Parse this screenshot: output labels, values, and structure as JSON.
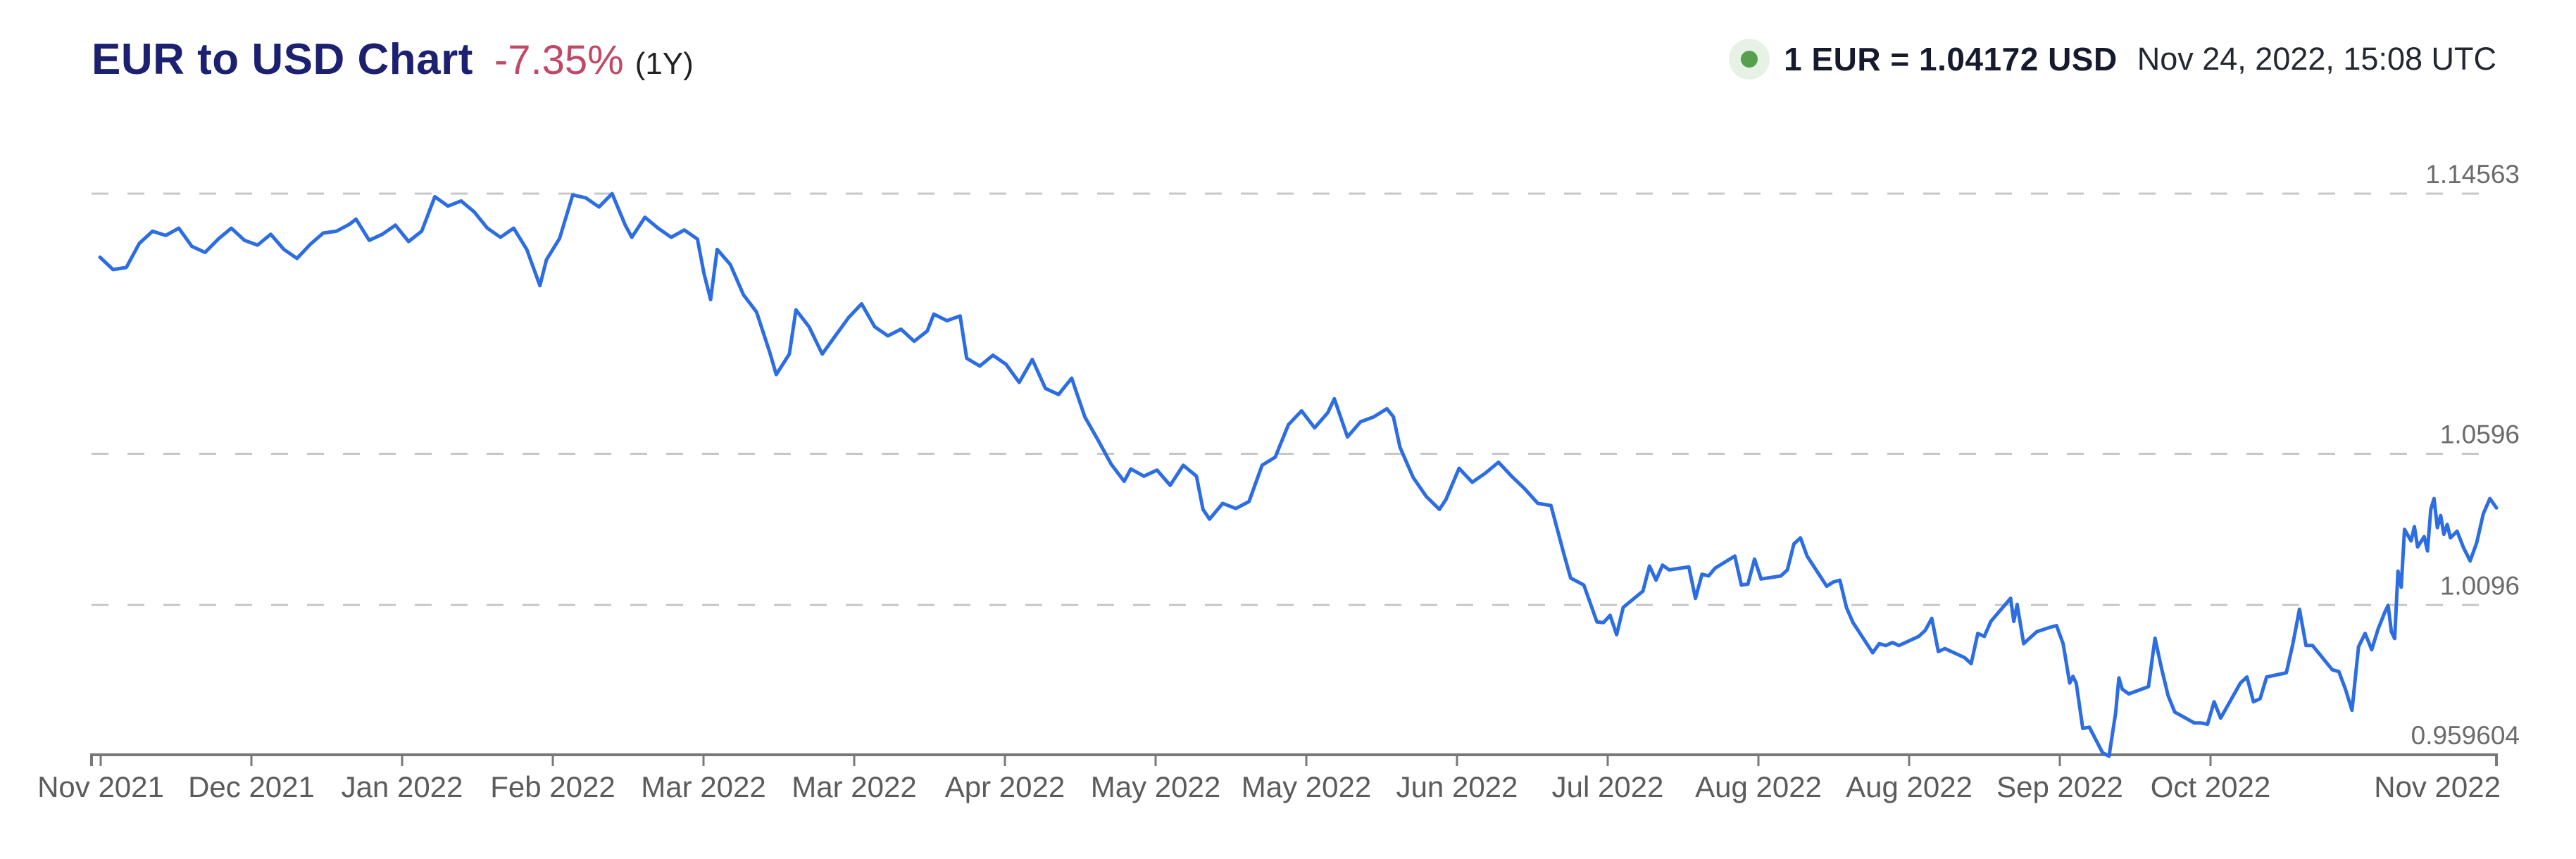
{
  "header": {
    "title": "EUR to USD Chart",
    "change_percent": "-7.35%",
    "range_label": "(1Y)",
    "rate_label": "1 EUR = 1.04172 USD",
    "timestamp": "Nov 24, 2022, 15:08 UTC"
  },
  "colors": {
    "title_navy": "#1c2070",
    "change_red": "#bf4967",
    "text_dark": "#151a2d",
    "accent_blue": "#2c6de2",
    "axis_gray": "#787878",
    "grid_gray": "#c7c7c7",
    "label_gray": "#6b6b6b",
    "xlabel_gray": "#5b5b5b",
    "live_green": "#55a14e",
    "live_halo": "#e7f1e5"
  },
  "chart_data": {
    "type": "line",
    "title": "EUR to USD exchange rate, 1 year",
    "ylim": [
      0.959604,
      1.14563
    ],
    "xlim_days": [
      0,
      365
    ],
    "grid": "dashed-horizontal",
    "legend_position": "none",
    "x_ticks": [
      "Nov 2021",
      "Dec 2021",
      "Jan 2022",
      "Feb 2022",
      "Mar 2022",
      "Mar 2022",
      "Apr 2022",
      "May 2022",
      "May 2022",
      "Jun 2022",
      "Jul 2022",
      "Aug 2022",
      "Aug 2022",
      "Sep 2022",
      "Oct 2022",
      "Nov 2022"
    ],
    "y_gridlines": [
      {
        "value": 1.14563,
        "label": "1.14563",
        "axis": false
      },
      {
        "value": 1.0596,
        "label": "1.0596",
        "axis": false
      },
      {
        "value": 1.0096,
        "label": "1.0096",
        "axis": false
      },
      {
        "value": 0.959604,
        "label": "0.959604",
        "axis": true
      }
    ],
    "series": [
      {
        "name": "EUR/USD",
        "points": [
          [
            0,
            1.1246
          ],
          [
            2,
            1.1205
          ],
          [
            4,
            1.1212
          ],
          [
            6,
            1.1292
          ],
          [
            8,
            1.1332
          ],
          [
            10,
            1.1318
          ],
          [
            12,
            1.1342
          ],
          [
            14,
            1.1282
          ],
          [
            16,
            1.1262
          ],
          [
            18,
            1.1306
          ],
          [
            20,
            1.1342
          ],
          [
            22,
            1.1302
          ],
          [
            24,
            1.1286
          ],
          [
            26,
            1.1322
          ],
          [
            28,
            1.1272
          ],
          [
            30,
            1.1242
          ],
          [
            32,
            1.1288
          ],
          [
            34,
            1.1326
          ],
          [
            36,
            1.1332
          ],
          [
            38,
            1.1355
          ],
          [
            39,
            1.1372
          ],
          [
            41,
            1.1302
          ],
          [
            43,
            1.1322
          ],
          [
            45,
            1.1352
          ],
          [
            47,
            1.1298
          ],
          [
            49,
            1.1332
          ],
          [
            51,
            1.1446
          ],
          [
            53,
            1.1415
          ],
          [
            55,
            1.1432
          ],
          [
            57,
            1.1396
          ],
          [
            59,
            1.1342
          ],
          [
            61,
            1.1312
          ],
          [
            63,
            1.1342
          ],
          [
            65,
            1.1272
          ],
          [
            67,
            1.1152
          ],
          [
            68,
            1.1238
          ],
          [
            70,
            1.1308
          ],
          [
            72,
            1.1452
          ],
          [
            74,
            1.1442
          ],
          [
            76,
            1.1412
          ],
          [
            78,
            1.14563
          ],
          [
            80,
            1.1352
          ],
          [
            81,
            1.1312
          ],
          [
            83,
            1.1378
          ],
          [
            85,
            1.1342
          ],
          [
            87,
            1.1312
          ],
          [
            89,
            1.1336
          ],
          [
            91,
            1.1306
          ],
          [
            92,
            1.1192
          ],
          [
            93,
            1.1106
          ],
          [
            94,
            1.1272
          ],
          [
            96,
            1.1222
          ],
          [
            98,
            1.1122
          ],
          [
            100,
            1.1065
          ],
          [
            102,
            1.0932
          ],
          [
            103,
            1.0858
          ],
          [
            105,
            1.0926
          ],
          [
            106,
            1.1072
          ],
          [
            108,
            1.1016
          ],
          [
            110,
            1.0926
          ],
          [
            112,
            1.0986
          ],
          [
            114,
            1.1046
          ],
          [
            116,
            1.1092
          ],
          [
            118,
            1.1016
          ],
          [
            120,
            1.0986
          ],
          [
            122,
            1.1008
          ],
          [
            124,
            1.0968
          ],
          [
            126,
            1.1002
          ],
          [
            127,
            1.1058
          ],
          [
            129,
            1.1036
          ],
          [
            131,
            1.1052
          ],
          [
            132,
            1.0912
          ],
          [
            134,
            1.0886
          ],
          [
            136,
            1.0922
          ],
          [
            138,
            1.0892
          ],
          [
            140,
            1.0832
          ],
          [
            142,
            1.0908
          ],
          [
            144,
            1.0812
          ],
          [
            146,
            1.0792
          ],
          [
            148,
            1.0846
          ],
          [
            150,
            1.0718
          ],
          [
            152,
            1.0642
          ],
          [
            154,
            1.0562
          ],
          [
            156,
            1.0505
          ],
          [
            157,
            1.0546
          ],
          [
            159,
            1.0522
          ],
          [
            161,
            1.0542
          ],
          [
            163,
            1.0492
          ],
          [
            165,
            1.0558
          ],
          [
            167,
            1.0522
          ],
          [
            168,
            1.0412
          ],
          [
            169,
            1.038
          ],
          [
            171,
            1.0432
          ],
          [
            173,
            1.0415
          ],
          [
            175,
            1.0438
          ],
          [
            177,
            1.0558
          ],
          [
            179,
            1.0585
          ],
          [
            181,
            1.0692
          ],
          [
            183,
            1.0738
          ],
          [
            185,
            1.0682
          ],
          [
            187,
            1.0732
          ],
          [
            188,
            1.0778
          ],
          [
            190,
            1.0652
          ],
          [
            192,
            1.0702
          ],
          [
            194,
            1.0718
          ],
          [
            196,
            1.0745
          ],
          [
            197,
            1.0718
          ],
          [
            198,
            1.0618
          ],
          [
            200,
            1.0518
          ],
          [
            202,
            1.0455
          ],
          [
            204,
            1.0412
          ],
          [
            205,
            1.0445
          ],
          [
            207,
            1.0548
          ],
          [
            209,
            1.0502
          ],
          [
            211,
            1.0532
          ],
          [
            213,
            1.0568
          ],
          [
            215,
            1.0522
          ],
          [
            217,
            1.048
          ],
          [
            219,
            1.0432
          ],
          [
            221,
            1.0425
          ],
          [
            223,
            1.0262
          ],
          [
            224,
            1.0185
          ],
          [
            226,
            1.0162
          ],
          [
            228,
            1.004
          ],
          [
            229,
            1.0038
          ],
          [
            230,
            1.0062
          ],
          [
            231,
            0.9998
          ],
          [
            232,
            1.0088
          ],
          [
            235,
            1.0142
          ],
          [
            236,
            1.0225
          ],
          [
            237,
            1.0178
          ],
          [
            238,
            1.0228
          ],
          [
            239,
            1.0212
          ],
          [
            242,
            1.0222
          ],
          [
            243,
            1.0118
          ],
          [
            244,
            1.0198
          ],
          [
            245,
            1.0192
          ],
          [
            246,
            1.0218
          ],
          [
            249,
            1.0258
          ],
          [
            250,
            1.0162
          ],
          [
            251,
            1.0165
          ],
          [
            252,
            1.0248
          ],
          [
            253,
            1.0182
          ],
          [
            256,
            1.0192
          ],
          [
            257,
            1.0212
          ],
          [
            258,
            1.0298
          ],
          [
            259,
            1.0318
          ],
          [
            260,
            1.0258
          ],
          [
            263,
            1.0158
          ],
          [
            264,
            1.0172
          ],
          [
            265,
            1.0178
          ],
          [
            266,
            1.0088
          ],
          [
            267,
            1.0038
          ],
          [
            270,
            0.9938
          ],
          [
            271,
            0.9968
          ],
          [
            272,
            0.9962
          ],
          [
            273,
            0.9972
          ],
          [
            274,
            0.9962
          ],
          [
            277,
            0.9992
          ],
          [
            278,
            1.0012
          ],
          [
            279,
            1.0052
          ],
          [
            280,
            0.9942
          ],
          [
            281,
            0.9952
          ],
          [
            284,
            0.9922
          ],
          [
            285,
            0.9902
          ],
          [
            286,
            1.0002
          ],
          [
            287,
            0.9992
          ],
          [
            288,
            1.0042
          ],
          [
            291,
            1.0118
          ],
          [
            291.5,
            1.0042
          ],
          [
            292,
            1.0098
          ],
          [
            293,
            0.9968
          ],
          [
            294,
            0.9988
          ],
          [
            295,
            1.0008
          ],
          [
            297,
            1.0022
          ],
          [
            298,
            1.0028
          ],
          [
            299,
            0.9968
          ],
          [
            300,
            0.9838
          ],
          [
            300.5,
            0.986
          ],
          [
            301,
            0.9838
          ],
          [
            302,
            0.9688
          ],
          [
            303,
            0.9692
          ],
          [
            305,
            0.9608
          ],
          [
            306,
            0.959604
          ],
          [
            307,
            0.9738
          ],
          [
            307.5,
            0.9855
          ],
          [
            308,
            0.9818
          ],
          [
            309,
            0.9802
          ],
          [
            312,
            0.9826
          ],
          [
            313,
            0.9986
          ],
          [
            314,
            0.9886
          ],
          [
            315,
            0.9796
          ],
          [
            316,
            0.9742
          ],
          [
            319,
            0.9706
          ],
          [
            320,
            0.9706
          ],
          [
            321,
            0.9702
          ],
          [
            322,
            0.9776
          ],
          [
            323,
            0.9722
          ],
          [
            326,
            0.9838
          ],
          [
            327,
            0.9858
          ],
          [
            328,
            0.9776
          ],
          [
            329,
            0.9786
          ],
          [
            330,
            0.9858
          ],
          [
            333,
            0.9872
          ],
          [
            334,
            0.9968
          ],
          [
            335,
            1.0082
          ],
          [
            336,
            0.9962
          ],
          [
            337,
            0.9962
          ],
          [
            340,
            0.9882
          ],
          [
            341,
            0.9876
          ],
          [
            342,
            0.9818
          ],
          [
            343,
            0.9748
          ],
          [
            344,
            0.9958
          ],
          [
            345,
            1.0002
          ],
          [
            346,
            0.9948
          ],
          [
            347,
            1.0018
          ],
          [
            348,
            1.0072
          ],
          [
            348.5,
            1.0095
          ],
          [
            349,
            1.0008
          ],
          [
            349.5,
            0.9985
          ],
          [
            350,
            1.0208
          ],
          [
            350.5,
            1.0155
          ],
          [
            351,
            1.0346
          ],
          [
            352,
            1.0308
          ],
          [
            352.5,
            1.0355
          ],
          [
            353,
            1.0288
          ],
          [
            354,
            1.0322
          ],
          [
            354.5,
            1.0275
          ],
          [
            355,
            1.0412
          ],
          [
            355.5,
            1.0448
          ],
          [
            356,
            1.0352
          ],
          [
            356.5,
            1.0392
          ],
          [
            357,
            1.033
          ],
          [
            357.5,
            1.0362
          ],
          [
            358,
            1.0318
          ],
          [
            359,
            1.034
          ],
          [
            360,
            1.0285
          ],
          [
            361,
            1.0242
          ],
          [
            362,
            1.0302
          ],
          [
            363,
            1.0398
          ],
          [
            364,
            1.0448
          ],
          [
            365,
            1.04172
          ]
        ]
      }
    ]
  }
}
